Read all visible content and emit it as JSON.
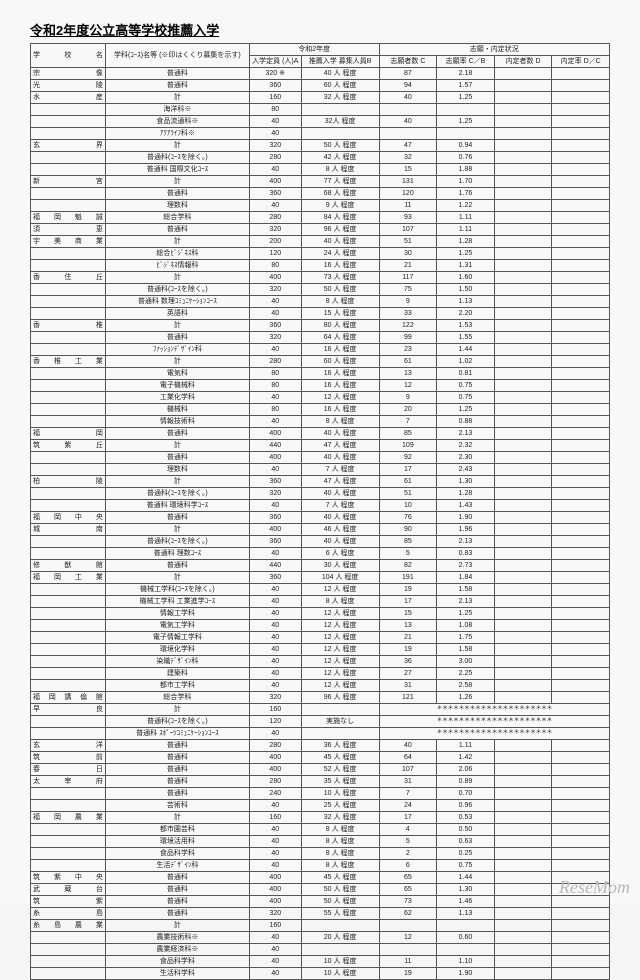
{
  "title": "令和2年度公立高等学校推薦入学",
  "header": {
    "group1": "令和2年度",
    "group2": "志願・内定状況",
    "school": "学 校 名",
    "course": "学科(ｺｰｽ)名等\n(※印はくくり募集を示す)",
    "capacity": "入学定員\n(人)A",
    "rec": "推薦入学\n募集人員B",
    "applicants": "志願者数\nC",
    "rate": "志願率\nC／B",
    "selected": "内定者数\nD",
    "selrate": "内定率\nD／C"
  },
  "rows": [
    {
      "school": "宗　　　像",
      "course": "普通科",
      "cap": "320 ※",
      "rec": "40 人 程度",
      "app": "87",
      "rate": "2.18",
      "sel": "",
      "selr": ""
    },
    {
      "school": "光　　　陵",
      "course": "普通科",
      "cap": "360",
      "rec": "60 人 程度",
      "app": "94",
      "rate": "1.57",
      "sel": "",
      "selr": ""
    },
    {
      "school": "水　　　産",
      "course": "計",
      "cap": "160",
      "rec": "32 人 程度",
      "app": "40",
      "rate": "1.25",
      "sel": "",
      "selr": ""
    },
    {
      "school": "",
      "course": "海洋科※",
      "cap": "80",
      "rec": "",
      "app": "",
      "rate": "",
      "sel": "",
      "selr": "",
      "span": "rec3"
    },
    {
      "school": "",
      "course": "食品流通科※",
      "cap": "40",
      "rec": "32人 程度",
      "app": "40",
      "rate": "1.25",
      "sel": "",
      "selr": ""
    },
    {
      "school": "",
      "course": "ｱｸｱﾗｲﾌ科※",
      "cap": "40",
      "rec": "",
      "app": "",
      "rate": "",
      "sel": "",
      "selr": ""
    },
    {
      "school": "玄　　　界",
      "course": "計",
      "cap": "320",
      "rec": "50 人 程度",
      "app": "47",
      "rate": "0.94",
      "sel": "",
      "selr": ""
    },
    {
      "school": "",
      "course": "普通科(ｺｰｽを除く。)",
      "cap": "280",
      "rec": "42 人 程度",
      "app": "32",
      "rate": "0.76",
      "sel": "",
      "selr": ""
    },
    {
      "school": "",
      "course": "普通科 国際文化ｺｰｽ",
      "cap": "40",
      "rec": "8 人 程度",
      "app": "15",
      "rate": "1.88",
      "sel": "",
      "selr": ""
    },
    {
      "school": "新　　　宮",
      "course": "計",
      "cap": "400",
      "rec": "77 人 程度",
      "app": "131",
      "rate": "1.70",
      "sel": "",
      "selr": ""
    },
    {
      "school": "",
      "course": "普通科",
      "cap": "360",
      "rec": "68 人 程度",
      "app": "120",
      "rate": "1.76",
      "sel": "",
      "selr": ""
    },
    {
      "school": "",
      "course": "理数科",
      "cap": "40",
      "rec": "9 人 程度",
      "app": "11",
      "rate": "1.22",
      "sel": "",
      "selr": ""
    },
    {
      "school": "福 岡 魁 誠",
      "course": "総合学科",
      "cap": "280",
      "rec": "84 人 程度",
      "app": "93",
      "rate": "1.11",
      "sel": "",
      "selr": ""
    },
    {
      "school": "須　　　恵",
      "course": "普通科",
      "cap": "320",
      "rec": "96 人 程度",
      "app": "107",
      "rate": "1.11",
      "sel": "",
      "selr": ""
    },
    {
      "school": "宇 美 商 業",
      "course": "計",
      "cap": "200",
      "rec": "40 人 程度",
      "app": "51",
      "rate": "1.28",
      "sel": "",
      "selr": ""
    },
    {
      "school": "",
      "course": "総合ﾋﾞｼﾞﾈｽ科",
      "cap": "120",
      "rec": "24 人 程度",
      "app": "30",
      "rate": "1.25",
      "sel": "",
      "selr": ""
    },
    {
      "school": "",
      "course": "ﾋﾞｼﾞﾈｽ情報科",
      "cap": "80",
      "rec": "16 人 程度",
      "app": "21",
      "rate": "1.31",
      "sel": "",
      "selr": ""
    },
    {
      "school": "香 住 丘",
      "course": "計",
      "cap": "400",
      "rec": "73 人 程度",
      "app": "117",
      "rate": "1.60",
      "sel": "",
      "selr": ""
    },
    {
      "school": "",
      "course": "普通科(ｺｰｽを除く。)",
      "cap": "320",
      "rec": "50 人 程度",
      "app": "75",
      "rate": "1.50",
      "sel": "",
      "selr": ""
    },
    {
      "school": "",
      "course": "普通科 数理ｺﾐｭﾆｹｰｼｮﾝｺｰｽ",
      "cap": "40",
      "rec": "8 人 程度",
      "app": "9",
      "rate": "1.13",
      "sel": "",
      "selr": ""
    },
    {
      "school": "",
      "course": "英語科",
      "cap": "40",
      "rec": "15 人 程度",
      "app": "33",
      "rate": "2.20",
      "sel": "",
      "selr": ""
    },
    {
      "school": "香　　　椎",
      "course": "計",
      "cap": "360",
      "rec": "80 人 程度",
      "app": "122",
      "rate": "1.53",
      "sel": "",
      "selr": ""
    },
    {
      "school": "",
      "course": "普通科",
      "cap": "320",
      "rec": "64 人 程度",
      "app": "99",
      "rate": "1.55",
      "sel": "",
      "selr": ""
    },
    {
      "school": "",
      "course": "ﾌｧｯｼｮﾝﾃﾞｻﾞｲﾝ科",
      "cap": "40",
      "rec": "16 人 程度",
      "app": "23",
      "rate": "1.44",
      "sel": "",
      "selr": ""
    },
    {
      "school": "香 椎 工 業",
      "course": "計",
      "cap": "280",
      "rec": "60 人 程度",
      "app": "61",
      "rate": "1.02",
      "sel": "",
      "selr": ""
    },
    {
      "school": "",
      "course": "電気科",
      "cap": "80",
      "rec": "16 人 程度",
      "app": "13",
      "rate": "0.81",
      "sel": "",
      "selr": ""
    },
    {
      "school": "",
      "course": "電子機械科",
      "cap": "80",
      "rec": "16 人 程度",
      "app": "12",
      "rate": "0.75",
      "sel": "",
      "selr": ""
    },
    {
      "school": "",
      "course": "工業化学科",
      "cap": "40",
      "rec": "12 人 程度",
      "app": "9",
      "rate": "0.75",
      "sel": "",
      "selr": ""
    },
    {
      "school": "",
      "course": "機械科",
      "cap": "80",
      "rec": "16 人 程度",
      "app": "20",
      "rate": "1.25",
      "sel": "",
      "selr": ""
    },
    {
      "school": "",
      "course": "情報技術科",
      "cap": "40",
      "rec": "8 人 程度",
      "app": "7",
      "rate": "0.88",
      "sel": "",
      "selr": ""
    },
    {
      "school": "福　　　岡",
      "course": "普通科",
      "cap": "400",
      "rec": "40 人 程度",
      "app": "85",
      "rate": "2.13",
      "sel": "",
      "selr": ""
    },
    {
      "school": "筑 紫 丘",
      "course": "計",
      "cap": "440",
      "rec": "47 人 程度",
      "app": "109",
      "rate": "2.32",
      "sel": "",
      "selr": ""
    },
    {
      "school": "",
      "course": "普通科",
      "cap": "400",
      "rec": "40 人 程度",
      "app": "92",
      "rate": "2.30",
      "sel": "",
      "selr": ""
    },
    {
      "school": "",
      "course": "理数科",
      "cap": "40",
      "rec": "7 人 程度",
      "app": "17",
      "rate": "2.43",
      "sel": "",
      "selr": ""
    },
    {
      "school": "柏　　　陵",
      "course": "計",
      "cap": "360",
      "rec": "47 人 程度",
      "app": "61",
      "rate": "1.30",
      "sel": "",
      "selr": ""
    },
    {
      "school": "",
      "course": "普通科(ｺｰｽを除く。)",
      "cap": "320",
      "rec": "40 人 程度",
      "app": "51",
      "rate": "1.28",
      "sel": "",
      "selr": ""
    },
    {
      "school": "",
      "course": "普通科 環境科学ｺｰｽ",
      "cap": "40",
      "rec": "7 人 程度",
      "app": "10",
      "rate": "1.43",
      "sel": "",
      "selr": ""
    },
    {
      "school": "福 岡 中 央",
      "course": "普通科",
      "cap": "360",
      "rec": "40 人 程度",
      "app": "76",
      "rate": "1.90",
      "sel": "",
      "selr": ""
    },
    {
      "school": "城　　　南",
      "course": "計",
      "cap": "400",
      "rec": "46 人 程度",
      "app": "90",
      "rate": "1.96",
      "sel": "",
      "selr": ""
    },
    {
      "school": "",
      "course": "普通科(ｺｰｽを除く。)",
      "cap": "360",
      "rec": "40 人 程度",
      "app": "85",
      "rate": "2.13",
      "sel": "",
      "selr": ""
    },
    {
      "school": "",
      "course": "普通科 理数ｺｰｽ",
      "cap": "40",
      "rec": "6 人 程度",
      "app": "5",
      "rate": "0.83",
      "sel": "",
      "selr": ""
    },
    {
      "school": "修 猷 館",
      "course": "普通科",
      "cap": "440",
      "rec": "30 人 程度",
      "app": "82",
      "rate": "2.73",
      "sel": "",
      "selr": ""
    },
    {
      "school": "福 岡 工 業",
      "course": "計",
      "cap": "360",
      "rec": "104 人 程度",
      "app": "191",
      "rate": "1.84",
      "sel": "",
      "selr": ""
    },
    {
      "school": "",
      "course": "機械工学科(ｺｰｽを除く。)",
      "cap": "40",
      "rec": "12 人 程度",
      "app": "19",
      "rate": "1.58",
      "sel": "",
      "selr": ""
    },
    {
      "school": "",
      "course": "機械工学科 工業進学ｺｰｽ",
      "cap": "40",
      "rec": "8 人 程度",
      "app": "17",
      "rate": "2.13",
      "sel": "",
      "selr": ""
    },
    {
      "school": "",
      "course": "情報工学科",
      "cap": "40",
      "rec": "12 人 程度",
      "app": "15",
      "rate": "1.25",
      "sel": "",
      "selr": ""
    },
    {
      "school": "",
      "course": "電気工学科",
      "cap": "40",
      "rec": "12 人 程度",
      "app": "13",
      "rate": "1.08",
      "sel": "",
      "selr": ""
    },
    {
      "school": "",
      "course": "電子情報工学科",
      "cap": "40",
      "rec": "12 人 程度",
      "app": "21",
      "rate": "1.75",
      "sel": "",
      "selr": ""
    },
    {
      "school": "",
      "course": "環境化学科",
      "cap": "40",
      "rec": "12 人 程度",
      "app": "19",
      "rate": "1.58",
      "sel": "",
      "selr": ""
    },
    {
      "school": "",
      "course": "染織ﾃﾞｻﾞｲﾝ科",
      "cap": "40",
      "rec": "12 人 程度",
      "app": "36",
      "rate": "3.00",
      "sel": "",
      "selr": ""
    },
    {
      "school": "",
      "course": "建築科",
      "cap": "40",
      "rec": "12 人 程度",
      "app": "27",
      "rate": "2.25",
      "sel": "",
      "selr": ""
    },
    {
      "school": "",
      "course": "都市工学科",
      "cap": "40",
      "rec": "12 人 程度",
      "app": "31",
      "rate": "2.58",
      "sel": "",
      "selr": ""
    },
    {
      "school": "福 岡 講 倫 館",
      "course": "総合学科",
      "cap": "320",
      "rec": "96 人 程度",
      "app": "121",
      "rate": "1.26",
      "sel": "",
      "selr": ""
    },
    {
      "school": "早　　　良",
      "course": "計",
      "cap": "160",
      "rec": "",
      "app": "*",
      "rate": "*",
      "sel": "*",
      "selr": "*",
      "stars": true
    },
    {
      "school": "",
      "course": "普通科(ｺｰｽを除く。)",
      "cap": "120",
      "rec": "実施なし",
      "app": "*",
      "rate": "*",
      "sel": "*",
      "selr": "*",
      "stars": true
    },
    {
      "school": "",
      "course": "普通科 ｽﾎﾟｰﾂｺﾐｭﾆｹｰｼｮﾝｺｰｽ",
      "cap": "40",
      "rec": "",
      "app": "*",
      "rate": "*",
      "sel": "*",
      "selr": "*",
      "stars": true
    },
    {
      "school": "玄　　　洋",
      "course": "普通科",
      "cap": "280",
      "rec": "36 人 程度",
      "app": "40",
      "rate": "1.11",
      "sel": "",
      "selr": ""
    },
    {
      "school": "筑　　　前",
      "course": "普通科",
      "cap": "400",
      "rec": "45 人 程度",
      "app": "64",
      "rate": "1.42",
      "sel": "",
      "selr": ""
    },
    {
      "school": "春　　　日",
      "course": "普通科",
      "cap": "400",
      "rec": "52 人 程度",
      "app": "107",
      "rate": "2.06",
      "sel": "",
      "selr": ""
    },
    {
      "school": "太 宰 府",
      "course": "普通科",
      "cap": "280",
      "rec": "35 人 程度",
      "app": "31",
      "rate": "0.89",
      "sel": "",
      "selr": ""
    },
    {
      "school": "",
      "course": "普通科",
      "cap": "240",
      "rec": "10 人 程度",
      "app": "7",
      "rate": "0.70",
      "sel": "",
      "selr": ""
    },
    {
      "school": "",
      "course": "芸術科",
      "cap": "40",
      "rec": "25 人 程度",
      "app": "24",
      "rate": "0.96",
      "sel": "",
      "selr": ""
    },
    {
      "school": "福 岡 農 業",
      "course": "計",
      "cap": "160",
      "rec": "32 人 程度",
      "app": "17",
      "rate": "0.53",
      "sel": "",
      "selr": ""
    },
    {
      "school": "",
      "course": "都市園芸科",
      "cap": "40",
      "rec": "8 人 程度",
      "app": "4",
      "rate": "0.50",
      "sel": "",
      "selr": ""
    },
    {
      "school": "",
      "course": "環境活用科",
      "cap": "40",
      "rec": "8 人 程度",
      "app": "5",
      "rate": "0.63",
      "sel": "",
      "selr": ""
    },
    {
      "school": "",
      "course": "食品科学科",
      "cap": "40",
      "rec": "8 人 程度",
      "app": "2",
      "rate": "0.25",
      "sel": "",
      "selr": ""
    },
    {
      "school": "",
      "course": "生活ﾃﾞｻﾞｲﾝ科",
      "cap": "40",
      "rec": "8 人 程度",
      "app": "6",
      "rate": "0.75",
      "sel": "",
      "selr": ""
    },
    {
      "school": "筑 紫 中 央",
      "course": "普通科",
      "cap": "400",
      "rec": "45 人 程度",
      "app": "65",
      "rate": "1.44",
      "sel": "",
      "selr": ""
    },
    {
      "school": "武 蔵 台",
      "course": "普通科",
      "cap": "400",
      "rec": "50 人 程度",
      "app": "65",
      "rate": "1.30",
      "sel": "",
      "selr": ""
    },
    {
      "school": "筑　　　紫",
      "course": "普通科",
      "cap": "400",
      "rec": "50 人 程度",
      "app": "73",
      "rate": "1.46",
      "sel": "",
      "selr": ""
    },
    {
      "school": "糸　　　島",
      "course": "普通科",
      "cap": "320",
      "rec": "55 人 程度",
      "app": "62",
      "rate": "1.13",
      "sel": "",
      "selr": ""
    },
    {
      "school": "糸 島 農 業",
      "course": "計",
      "cap": "160",
      "rec": "",
      "app": "",
      "rate": "",
      "sel": "",
      "selr": ""
    },
    {
      "school": "",
      "course": "農業技術科※",
      "cap": "40",
      "rec": "20 人 程度",
      "app": "12",
      "rate": "0.60",
      "sel": "",
      "selr": ""
    },
    {
      "school": "",
      "course": "農業経済科※",
      "cap": "40",
      "rec": "",
      "app": "",
      "rate": "",
      "sel": "",
      "selr": ""
    },
    {
      "school": "",
      "course": "食品科学科",
      "cap": "40",
      "rec": "10 人 程度",
      "app": "11",
      "rate": "1.10",
      "sel": "",
      "selr": ""
    },
    {
      "school": "",
      "course": "生活科学科",
      "cap": "40",
      "rec": "10 人 程度",
      "app": "19",
      "rate": "1.90",
      "sel": "",
      "selr": ""
    }
  ],
  "watermark": "ReseMom"
}
